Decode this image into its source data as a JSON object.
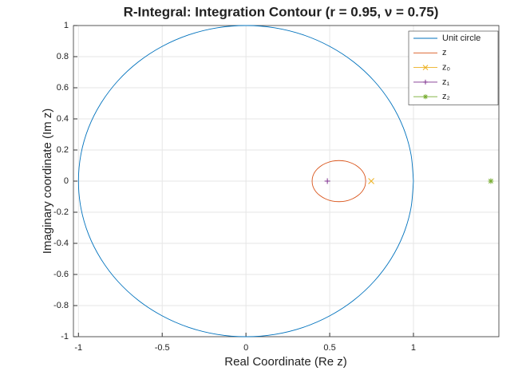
{
  "chart_data": {
    "type": "line",
    "title": "R-Integral: Integration Contour (r = 0.95, ν =  0.75)",
    "x_label": "Real Coordinate (Re z)",
    "y_label": "Imaginary coordinate (Im z)",
    "xlim": [
      -1.03,
      1.51
    ],
    "ylim": [
      -1,
      1
    ],
    "xticks": [
      -1,
      -0.5,
      0,
      0.5,
      1
    ],
    "yticks": [
      -1,
      -0.8,
      -0.6,
      -0.4,
      -0.2,
      0,
      0.2,
      0.4,
      0.6,
      0.8,
      1
    ],
    "grid": true,
    "legend": "northeast",
    "series": [
      {
        "name": "Unit circle",
        "color": "#0072bd",
        "marker": "none",
        "x": [
          1,
          0.985,
          0.94,
          0.866,
          0.766,
          0.643,
          0.5,
          0.342,
          0.174,
          0,
          -0.174,
          -0.342,
          -0.5,
          -0.643,
          -0.766,
          -0.866,
          -0.94,
          -0.985,
          -1,
          -0.985,
          -0.94,
          -0.866,
          -0.766,
          -0.643,
          -0.5,
          -0.342,
          -0.174,
          0,
          0.174,
          0.342,
          0.5,
          0.643,
          0.766,
          0.866,
          0.94,
          0.985,
          1
        ],
        "values": [
          0,
          0.174,
          0.342,
          0.5,
          0.643,
          0.766,
          0.866,
          0.94,
          0.985,
          1,
          0.985,
          0.94,
          0.866,
          0.766,
          0.643,
          0.5,
          0.342,
          0.174,
          0,
          -0.174,
          -0.342,
          -0.5,
          -0.643,
          -0.766,
          -0.866,
          -0.94,
          -0.985,
          -1,
          -0.985,
          -0.94,
          -0.866,
          -0.766,
          -0.643,
          -0.5,
          -0.342,
          -0.174,
          0
        ]
      },
      {
        "name": "z",
        "color": "#d95319",
        "marker": "none",
        "x": [
          0.715,
          0.71,
          0.694,
          0.668,
          0.635,
          0.596,
          0.555,
          0.514,
          0.475,
          0.442,
          0.416,
          0.4,
          0.395,
          0.4,
          0.416,
          0.442,
          0.475,
          0.514,
          0.555,
          0.596,
          0.635,
          0.668,
          0.694,
          0.71,
          0.715
        ],
        "values": [
          0,
          0.034,
          0.066,
          0.093,
          0.114,
          0.128,
          0.132,
          0.128,
          0.114,
          0.093,
          0.066,
          0.034,
          0,
          -0.034,
          -0.066,
          -0.093,
          -0.114,
          -0.128,
          -0.132,
          -0.128,
          -0.114,
          -0.093,
          -0.066,
          -0.034,
          0
        ]
      },
      {
        "name": "z₀",
        "color": "#edb120",
        "marker": "x",
        "x": [
          0.748
        ],
        "values": [
          0
        ]
      },
      {
        "name": "z₁",
        "color": "#7e2f8e",
        "marker": "+",
        "x": [
          0.486
        ],
        "values": [
          0
        ]
      },
      {
        "name": "z₂",
        "color": "#77ac30",
        "marker": "*",
        "x": [
          1.462
        ],
        "values": [
          0
        ]
      }
    ]
  }
}
